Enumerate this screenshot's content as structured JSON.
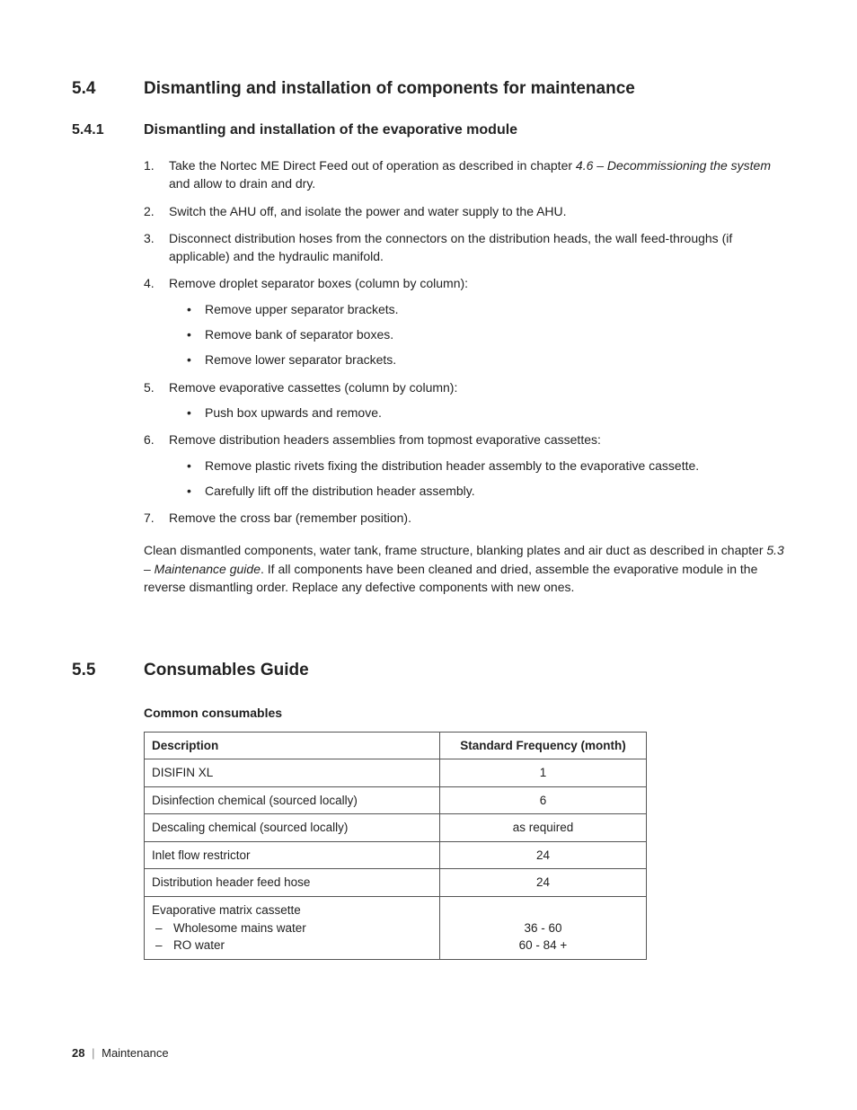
{
  "section54": {
    "num": "5.4",
    "title": "Dismantling and installation of components for maintenance"
  },
  "section541": {
    "num": "5.4.1",
    "title": "Dismantling and installation of the evaporative module"
  },
  "steps": {
    "s1a": "Take the Nortec ME Direct Feed out of operation as described in chapter ",
    "s1ref": "4.6 – Decommissioning the system",
    "s1b": " and allow to drain and dry.",
    "s2": "Switch the AHU off, and isolate the power and water supply to the AHU.",
    "s3": "Disconnect distribution hoses from the connectors on the distribution heads, the wall feed-throughs (if applicable) and the hydraulic manifold.",
    "s4": "Remove droplet separator boxes (column by column):",
    "s4a": "Remove upper separator brackets.",
    "s4b": "Remove bank of separator boxes.",
    "s4c": "Remove lower separator brackets.",
    "s5": "Remove evaporative cassettes (column by column):",
    "s5a": "Push box upwards and remove.",
    "s6": "Remove distribution headers assemblies from topmost evaporative cassettes:",
    "s6a": "Remove plastic rivets fixing the distribution header assembly to the evaporative cassette.",
    "s6b": "Carefully lift off the distribution header assembly.",
    "s7": "Remove the cross bar (remember position)."
  },
  "closing": {
    "a": "Clean dismantled components, water tank, frame structure, blanking plates and air duct as described in chapter ",
    "ref": "5.3 – Maintenance guide",
    "b": ". If all components have been cleaned and dried, assemble the evaporative module in the reverse dismantling order. Replace any defective components with new ones."
  },
  "section55": {
    "num": "5.5",
    "title": "Consumables Guide"
  },
  "table": {
    "caption": "Common consumables",
    "headers": {
      "desc": "Description",
      "freq": "Standard Frequency (month)"
    },
    "rows": {
      "r1": {
        "desc": "DISIFIN XL",
        "freq": "1"
      },
      "r2": {
        "desc": "Disinfection chemical (sourced locally)",
        "freq": "6"
      },
      "r3": {
        "desc": "Descaling chemical (sourced locally)",
        "freq": "as required"
      },
      "r4": {
        "desc": "Inlet  flow restrictor",
        "freq": "24"
      },
      "r5": {
        "desc": "Distribution header feed hose",
        "freq": "24"
      },
      "r6": {
        "desc": "Evaporative matrix cassette",
        "sub1": "Wholesome mains water",
        "sub2": "RO water",
        "freq1": "36 - 60",
        "freq2": "60 - 84 +"
      }
    }
  },
  "footer": {
    "page": "28",
    "label": "Maintenance"
  }
}
